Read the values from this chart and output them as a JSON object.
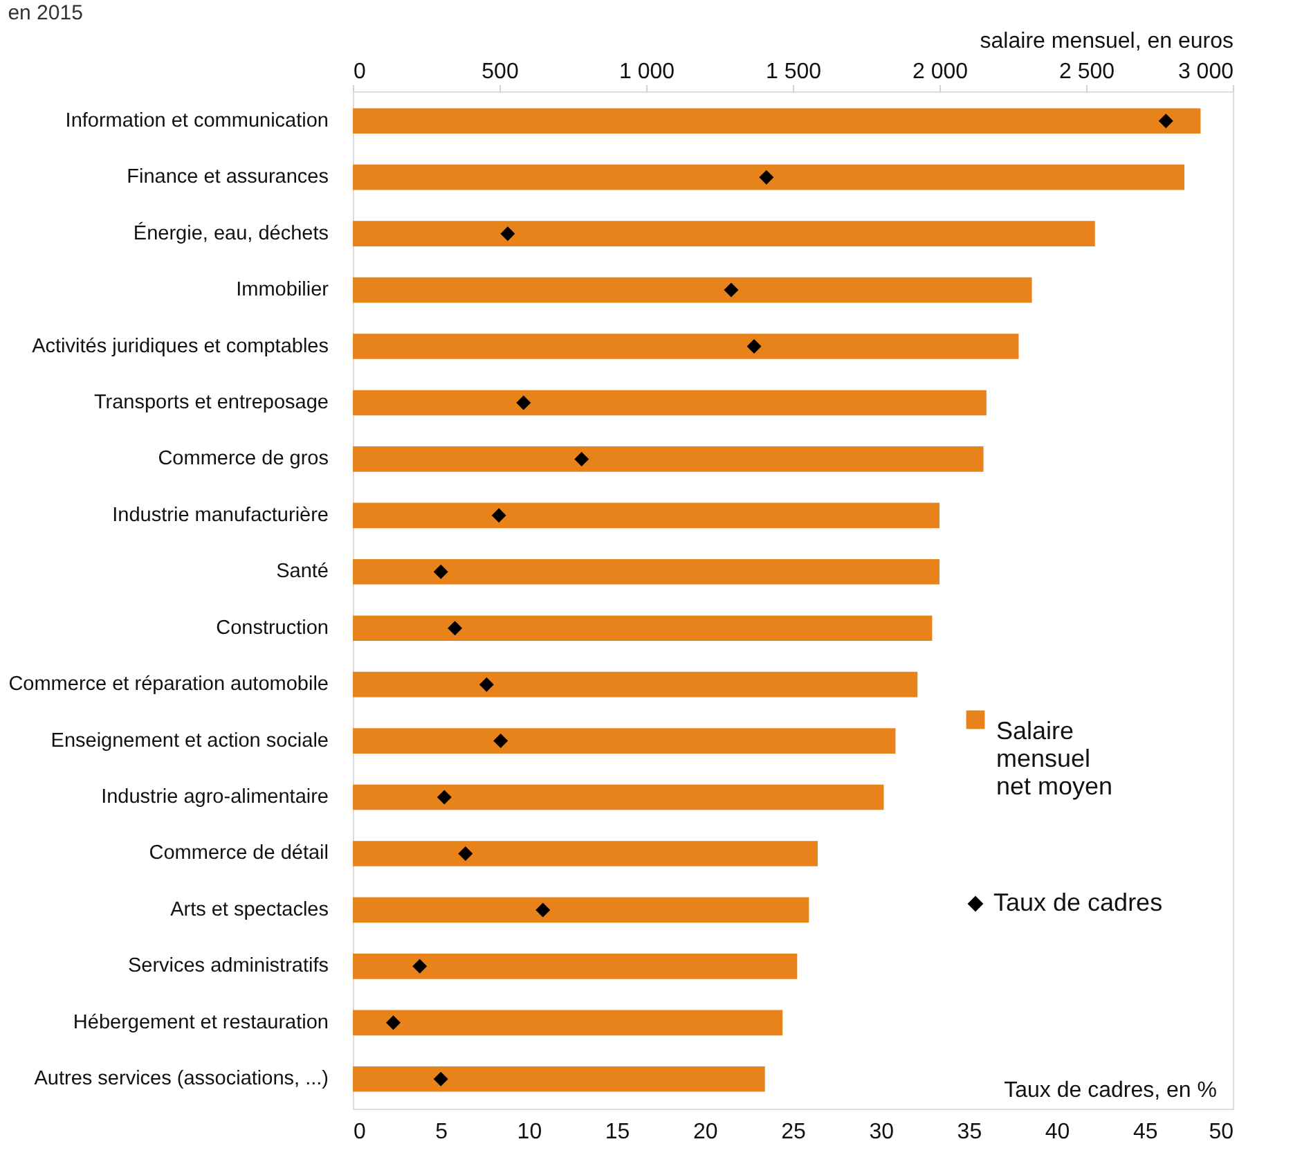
{
  "chart_data": {
    "type": "bar",
    "orientation": "horizontal",
    "title": "en 2015",
    "categories": [
      "Information et communication",
      "Finance et assurances",
      "Énergie, eau, déchets",
      "Immobilier",
      "Activités juridiques et comptables",
      "Transports et entreposage",
      "Commerce de gros",
      "Industrie manufacturière",
      "Santé",
      "Construction",
      "Commerce et réparation automobile",
      "Enseignement et action sociale",
      "Industrie agro-alimentaire",
      "Commerce de détail",
      "Arts et spectacles",
      "Services administratifs",
      "Hébergement et restauration",
      "Autres services (associations, ...)"
    ],
    "series": [
      {
        "name": "Salaire mensuel net moyen",
        "type": "bar",
        "axis": "x2",
        "color": "#e8821a",
        "values": [
          2890,
          2835,
          2530,
          2315,
          2270,
          2160,
          2150,
          2000,
          2000,
          1975,
          1925,
          1850,
          1810,
          1585,
          1555,
          1515,
          1465,
          1405
        ]
      },
      {
        "name": "Taux de cadres",
        "type": "scatter",
        "color": "#000000",
        "values": [
          46.2,
          23.5,
          8.8,
          21.5,
          22.8,
          9.7,
          13.0,
          8.3,
          5.0,
          5.8,
          7.6,
          8.4,
          5.2,
          6.4,
          10.8,
          3.8,
          2.3,
          5.0
        ]
      }
    ],
    "xlabel": "Taux de cadres, en %",
    "x2label": "salaire mensuel, en euros",
    "xlim": [
      0,
      50
    ],
    "xticks": [
      0,
      5,
      10,
      15,
      20,
      25,
      30,
      35,
      40,
      45,
      50
    ],
    "x2lim": [
      0,
      3000
    ],
    "x2ticks": [
      0,
      500,
      {
        "value": 1000,
        "label": "1 000"
      },
      {
        "value": 1500,
        "label": "1 500"
      },
      {
        "value": 2000,
        "label": "2 000"
      },
      {
        "value": 2500,
        "label": "2 500"
      },
      {
        "value": 3000,
        "label": "3 000"
      }
    ],
    "marker": "diamond",
    "legend": "right"
  }
}
